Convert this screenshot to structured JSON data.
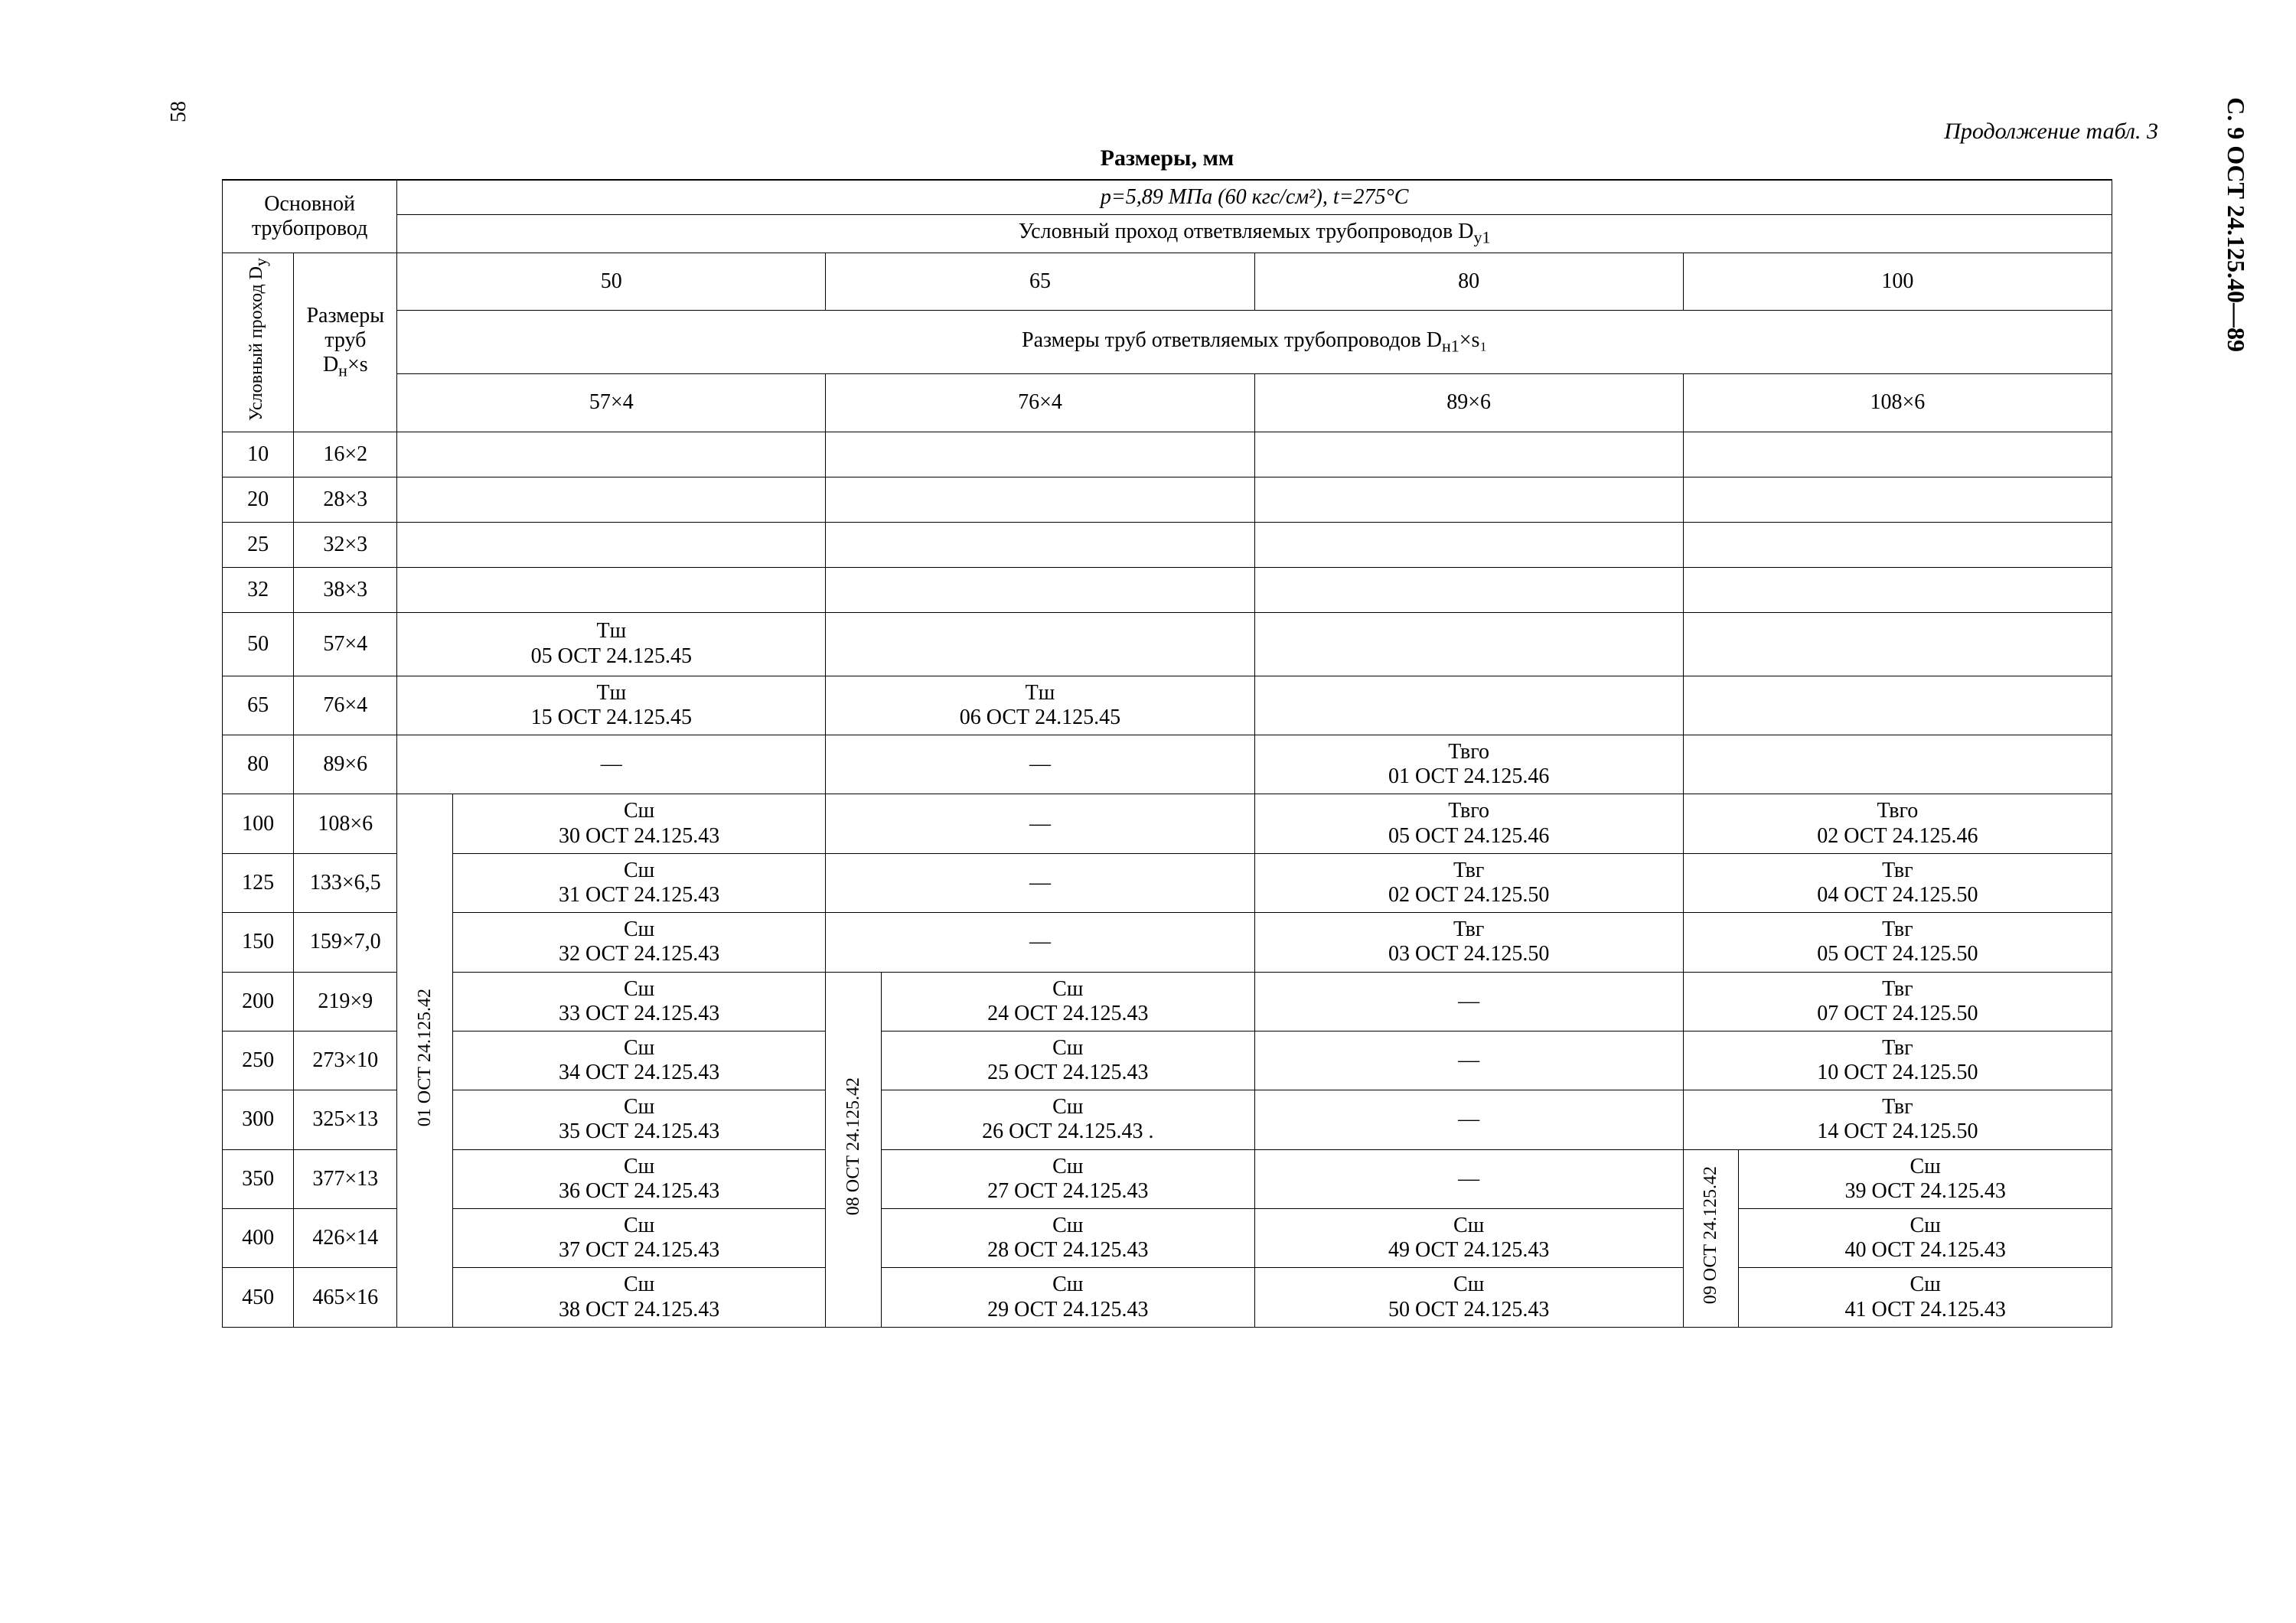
{
  "page_number_left": "58",
  "margin_right": "С. 9  ОСТ 24.125.40—89",
  "continuation": "Продолжение табл. 3",
  "caption": "Размеры, мм",
  "header": {
    "main_pipe": "Основной трубопровод",
    "pressure_line": "p=5,89 МПа (60 кгс/см²),  t=275°С",
    "branch_pass": "Условный проход ответвляемых трубопроводов D",
    "branch_pass_sub": "у1",
    "cond_pass": "Условный проход D",
    "cond_pass_sub": "у",
    "pipe_sizes": "Размеры труб D",
    "pipe_sizes_rest": "×s",
    "pipe_sizes_sub": "н",
    "branch_sizes": "Размеры труб ответвляемых трубопроводов D",
    "branch_sizes_sub": "н1",
    "branch_sizes_rest": "×s₁",
    "col_pass": [
      "50",
      "65",
      "80",
      "100"
    ],
    "col_size": [
      "57×4",
      "76×4",
      "89×6",
      "108×6"
    ]
  },
  "side_labels": {
    "col1_merge": "01 ОСТ 24.125.42",
    "col2_merge": "08 ОСТ 24.125.42",
    "col4_merge": "09 ОСТ 24.125.42"
  },
  "rows": [
    {
      "dy": "10",
      "dn": "16×2",
      "c": [
        "",
        "",
        "",
        ""
      ]
    },
    {
      "dy": "20",
      "dn": "28×3",
      "c": [
        "",
        "",
        "",
        ""
      ]
    },
    {
      "dy": "25",
      "dn": "32×3",
      "c": [
        "",
        "",
        "",
        ""
      ]
    },
    {
      "dy": "32",
      "dn": "38×3",
      "c": [
        "",
        "",
        "",
        ""
      ]
    },
    {
      "dy": "50",
      "dn": "57×4",
      "c": [
        "Тш\n05 ОСТ 24.125.45",
        "",
        "",
        ""
      ],
      "tall": true
    },
    {
      "dy": "65",
      "dn": "76×4",
      "c": [
        "Тш\n15 ОСТ 24.125.45",
        "Тш\n06 ОСТ 24.125.45",
        "",
        ""
      ]
    },
    {
      "dy": "80",
      "dn": "89×6",
      "c": [
        "—",
        "—",
        "Твго\n01 ОСТ 24.125.46",
        ""
      ]
    },
    {
      "dy": "100",
      "dn": "108×6",
      "c": [
        "Сш\n30 ОСТ 24.125.43",
        "—",
        "Твго\n05 ОСТ 24.125.46",
        "Твго\n02 ОСТ 24.125.46"
      ]
    },
    {
      "dy": "125",
      "dn": "133×6,5",
      "c": [
        "Сш\n31 ОСТ 24.125.43",
        "—",
        "Твг\n02 ОСТ 24.125.50",
        "Твг\n04 ОСТ 24.125.50"
      ]
    },
    {
      "dy": "150",
      "dn": "159×7,0",
      "c": [
        "Сш\n32 ОСТ 24.125.43",
        "—",
        "Твг\n03 ОСТ 24.125.50",
        "Твг\n05 ОСТ 24.125.50"
      ]
    },
    {
      "dy": "200",
      "dn": "219×9",
      "c": [
        "Сш\n33 ОСТ 24.125.43",
        "Сш\n24 ОСТ 24.125.43",
        "—",
        "Твг\n07 ОСТ 24.125.50"
      ]
    },
    {
      "dy": "250",
      "dn": "273×10",
      "c": [
        "Сш\n34 ОСТ 24.125.43",
        "Сш\n25 ОСТ 24.125.43",
        "—",
        "Твг\n10 ОСТ 24.125.50"
      ]
    },
    {
      "dy": "300",
      "dn": "325×13",
      "c": [
        "Сш\n35 ОСТ 24.125.43",
        "Сш\n26 ОСТ 24.125.43 .",
        "—",
        "Твг\n14 ОСТ 24.125.50"
      ]
    },
    {
      "dy": "350",
      "dn": "377×13",
      "c": [
        "Сш\n36 ОСТ 24.125.43",
        "Сш\n27 ОСТ 24.125.43",
        "—",
        "Сш\n39 ОСТ 24.125.43"
      ]
    },
    {
      "dy": "400",
      "dn": "426×14",
      "c": [
        "Сш\n37 ОСТ 24.125.43",
        "Сш\n28 ОСТ 24.125.43",
        "Сш\n49 ОСТ 24.125.43",
        "Сш\n40 ОСТ 24.125.43"
      ]
    },
    {
      "dy": "450",
      "dn": "465×16",
      "c": [
        "Сш\n38 ОСТ 24.125.43",
        "Сш\n29 ОСТ 24.125.43",
        "Сш\n50 ОСТ 24.125.43",
        "Сш\n41 ОСТ 24.125.43"
      ]
    }
  ]
}
